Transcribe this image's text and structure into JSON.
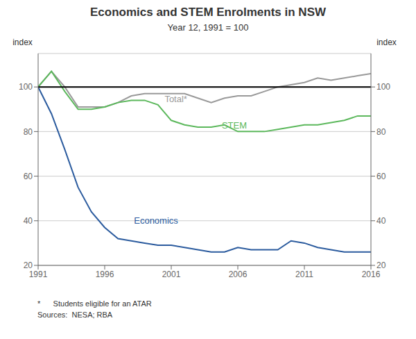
{
  "chart_data": {
    "type": "line",
    "title": "Economics and STEM Enrolments in NSW",
    "subtitle": "Year 12, 1991 = 100",
    "ylabel": "index",
    "y2label": "index",
    "x": [
      1991,
      1992,
      1993,
      1994,
      1995,
      1996,
      1997,
      1998,
      1999,
      2000,
      2001,
      2002,
      2003,
      2004,
      2005,
      2006,
      2007,
      2008,
      2009,
      2010,
      2011,
      2012,
      2013,
      2014,
      2015,
      2016
    ],
    "series": [
      {
        "name": "Total*",
        "color": "#999999",
        "values": [
          100,
          107,
          100,
          91,
          91,
          91,
          93,
          96,
          97,
          97,
          97,
          97,
          95,
          93,
          95,
          96,
          96,
          98,
          100,
          101,
          102,
          104,
          103,
          104,
          105,
          106
        ]
      },
      {
        "name": "STEM",
        "color": "#5cb85c",
        "values": [
          100,
          107,
          98,
          90,
          90,
          91,
          93,
          94,
          94,
          92,
          85,
          83,
          82,
          82,
          83,
          80,
          80,
          80,
          81,
          82,
          83,
          83,
          84,
          85,
          87,
          87
        ]
      },
      {
        "name": "Economics",
        "color": "#2b5b9e",
        "values": [
          100,
          88,
          72,
          55,
          44,
          37,
          32,
          31,
          30,
          29,
          29,
          28,
          27,
          26,
          26,
          28,
          27,
          27,
          27,
          31,
          30,
          28,
          27,
          26,
          26,
          26
        ]
      }
    ],
    "annotations": [
      {
        "text": "Total*",
        "x": 2000.5,
        "y": 96.5,
        "color": "#999999"
      },
      {
        "text": "STEM",
        "x": 2004.8,
        "y": 84.5,
        "color": "#5cb85c"
      },
      {
        "text": "Economics",
        "x": 1998.2,
        "y": 42,
        "color": "#2b5b9e"
      }
    ],
    "reference_line": {
      "value": 100,
      "color": "#000000"
    },
    "footnotes": [
      "*      Students eligible for an ATAR",
      "Sources:  NESA; RBA"
    ],
    "xlim": [
      1991,
      2016
    ],
    "xticks": [
      1991,
      1996,
      2001,
      2006,
      2011,
      2016
    ],
    "ylim": [
      20,
      115
    ],
    "yticks": [
      20,
      40,
      60,
      80,
      100
    ],
    "y2lim": [
      20,
      115
    ],
    "y2ticks": [
      20,
      40,
      60,
      80,
      100
    ],
    "grid": true
  }
}
